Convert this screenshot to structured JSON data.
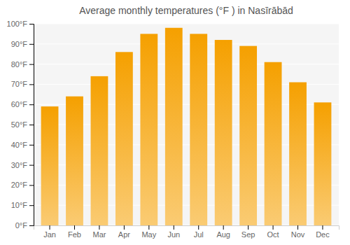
{
  "chart_data": {
    "type": "bar",
    "title": "Average monthly temperatures (°F ) in Nasīrābād",
    "categories": [
      "Jan",
      "Feb",
      "Mar",
      "Apr",
      "May",
      "Jun",
      "Jul",
      "Aug",
      "Sep",
      "Oct",
      "Nov",
      "Dec"
    ],
    "values": [
      59,
      64,
      74,
      86,
      95,
      98,
      95,
      92,
      89,
      81,
      71,
      61
    ],
    "color": "#F5A000",
    "ylim": [
      0,
      100
    ],
    "yticks": [
      {
        "value": 0,
        "label": "0°F"
      },
      {
        "value": 10,
        "label": "10°F"
      },
      {
        "value": 20,
        "label": "20°F"
      },
      {
        "value": 30,
        "label": "30°F"
      },
      {
        "value": 40,
        "label": "40°F"
      },
      {
        "value": 50,
        "label": "50°F"
      },
      {
        "value": 60,
        "label": "60°F"
      },
      {
        "value": 70,
        "label": "70°F"
      },
      {
        "value": 80,
        "label": "80°F"
      },
      {
        "value": 90,
        "label": "90°F"
      },
      {
        "value": 100,
        "label": "100°F"
      }
    ],
    "grid": true
  }
}
